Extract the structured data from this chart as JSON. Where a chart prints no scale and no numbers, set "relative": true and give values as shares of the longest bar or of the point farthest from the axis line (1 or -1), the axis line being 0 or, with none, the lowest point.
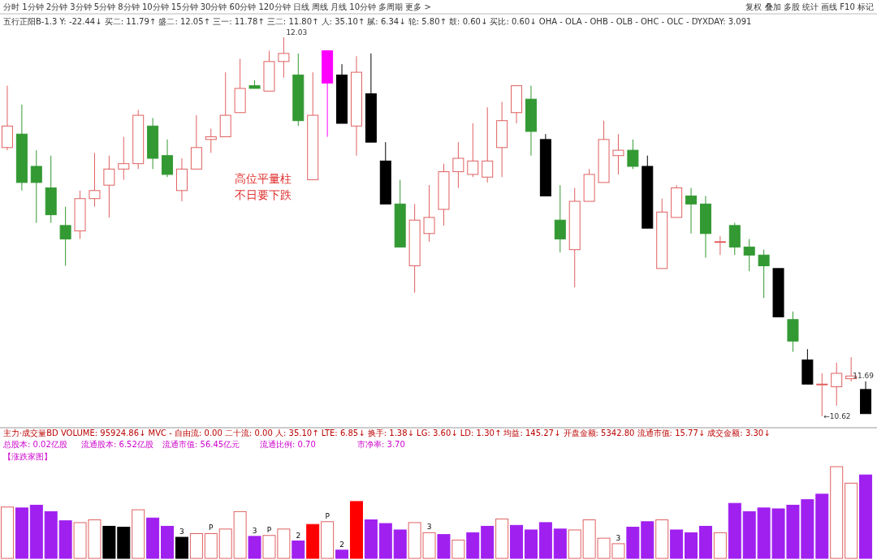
{
  "chart_data": [
    {
      "type": "candlestick",
      "title": "五行正阳B-1.3 Y: -22.44↓ 买二: 11.79↑ 盛二: 12.05↑ 三一: 11.78↑ 三二: 11.80↑ 人: 35.10↑ 腻: 6.34↓ 轮: 5.80↑ 鼓: 0.60↓ 买比: 0.60↓ OHA - OLA - OHB - OLB - OHC - OLC - DYXDAY: 3.091",
      "annotations": [
        "分时 1分钟 2分钟 3分钟 5分钟 8分钟 10分钟 15分钟 30分钟 60分钟 120分钟 日线 周线 月线 10分钟 多周期 更多 >",
        "复权 叠加 多股 统计 画线 F10 标记",
        "高位平量柱",
        "不日要下跌",
        "12.03",
        "11.69",
        "←10.62"
      ],
      "categories": [
        null,
        null,
        null,
        null,
        null,
        null,
        null,
        null,
        null,
        null,
        null,
        null,
        null,
        null,
        null,
        null,
        null,
        null,
        null,
        null,
        null,
        null,
        null,
        null,
        null,
        null,
        null,
        null,
        null,
        null,
        null,
        null,
        null,
        null,
        null,
        null,
        null,
        null,
        null,
        null,
        null,
        null,
        null,
        null,
        null,
        null,
        null,
        null,
        null,
        null,
        null,
        null,
        null,
        null,
        null,
        null,
        null,
        null,
        null,
        null
      ],
      "ohlc": [
        [
          11.62,
          11.85,
          11.61,
          11.7
        ],
        [
          11.67,
          11.78,
          11.46,
          11.49
        ],
        [
          11.55,
          11.61,
          11.34,
          11.49
        ],
        [
          11.47,
          11.59,
          11.34,
          11.37
        ],
        [
          11.33,
          11.4,
          11.18,
          11.28
        ],
        [
          11.31,
          11.46,
          11.28,
          11.43
        ],
        [
          11.43,
          11.6,
          11.4,
          11.46
        ],
        [
          11.48,
          11.59,
          11.36,
          11.54
        ],
        [
          11.54,
          11.66,
          11.5,
          11.56
        ],
        [
          11.56,
          11.76,
          11.54,
          11.74
        ],
        [
          11.7,
          11.73,
          11.54,
          11.58
        ],
        [
          11.59,
          11.65,
          11.51,
          11.52
        ],
        [
          11.46,
          11.58,
          11.42,
          11.54
        ],
        [
          11.54,
          11.74,
          11.54,
          11.62
        ],
        [
          11.65,
          11.69,
          11.6,
          11.66
        ],
        [
          11.66,
          11.9,
          11.66,
          11.74
        ],
        [
          11.75,
          11.95,
          11.75,
          11.84
        ],
        [
          11.85,
          11.87,
          11.84,
          11.84
        ],
        [
          11.83,
          11.98,
          11.83,
          11.94
        ],
        [
          11.94,
          12.03,
          11.88,
          11.97
        ],
        [
          11.89,
          11.97,
          11.7,
          11.72
        ],
        [
          11.5,
          11.9,
          11.5,
          11.74
        ],
        [
          11.86,
          11.98,
          11.66,
          11.98
        ],
        [
          11.89,
          11.93,
          11.71,
          11.71
        ],
        [
          11.7,
          11.96,
          11.59,
          11.9
        ],
        [
          11.82,
          11.97,
          11.64,
          11.64
        ],
        [
          11.57,
          11.64,
          11.41,
          11.41
        ],
        [
          11.41,
          11.5,
          11.25,
          11.25
        ],
        [
          11.18,
          11.41,
          11.08,
          11.35
        ],
        [
          11.3,
          11.48,
          11.27,
          11.36
        ],
        [
          11.39,
          11.56,
          11.33,
          11.53
        ],
        [
          11.53,
          11.64,
          11.47,
          11.58
        ],
        [
          11.52,
          11.71,
          11.51,
          11.57
        ],
        [
          11.51,
          11.77,
          11.49,
          11.57
        ],
        [
          11.62,
          11.79,
          11.51,
          11.72
        ],
        [
          11.75,
          11.85,
          11.71,
          11.85
        ],
        [
          11.8,
          11.85,
          11.59,
          11.68
        ],
        [
          11.65,
          11.67,
          11.44,
          11.44
        ],
        [
          11.35,
          11.48,
          11.23,
          11.28
        ],
        [
          11.24,
          11.47,
          11.1,
          11.42
        ],
        [
          11.42,
          11.54,
          11.42,
          11.52
        ],
        [
          11.49,
          11.72,
          11.49,
          11.65
        ],
        [
          11.59,
          11.67,
          11.52,
          11.61
        ],
        [
          11.61,
          11.65,
          11.54,
          11.55
        ],
        [
          11.55,
          11.59,
          11.32,
          11.32
        ],
        [
          11.17,
          11.43,
          11.17,
          11.38
        ],
        [
          11.36,
          11.48,
          11.36,
          11.47
        ],
        [
          11.44,
          11.47,
          11.3,
          11.41
        ],
        [
          11.41,
          11.44,
          11.21,
          11.3
        ],
        [
          11.27,
          11.29,
          11.22,
          11.27
        ],
        [
          11.33,
          11.34,
          11.22,
          11.25
        ],
        [
          11.25,
          11.28,
          11.16,
          11.22
        ],
        [
          11.22,
          11.24,
          11.06,
          11.18
        ],
        [
          11.17,
          11.17,
          10.99,
          10.99
        ],
        [
          10.98,
          11.01,
          10.86,
          10.9
        ],
        [
          10.83,
          10.87,
          10.74,
          10.74
        ],
        [
          10.74,
          10.78,
          10.62,
          10.74
        ],
        [
          10.73,
          10.82,
          10.66,
          10.78
        ],
        [
          10.76,
          10.84,
          10.75,
          10.77
        ],
        [
          10.72,
          10.75,
          10.63,
          10.63
        ]
      ],
      "colors": [
        "#e06060",
        "#339933",
        "#339933",
        "#339933",
        "#339933",
        "#e06060",
        "#e06060",
        "#e06060",
        "#e06060",
        "#e06060",
        "#339933",
        "#339933",
        "#e06060",
        "#e06060",
        "#e06060",
        "#e06060",
        "#e06060",
        "#339933",
        "#e06060",
        "#e06060",
        "#339933",
        "#e06060",
        "#ff00ff",
        "#000000",
        "#e06060",
        "#000000",
        "#000000",
        "#339933",
        "#e06060",
        "#e06060",
        "#e06060",
        "#e06060",
        "#e06060",
        "#e06060",
        "#e06060",
        "#e06060",
        "#339933",
        "#000000",
        "#339933",
        "#e06060",
        "#e06060",
        "#e06060",
        "#e06060",
        "#339933",
        "#000000",
        "#e06060",
        "#e06060",
        "#339933",
        "#339933",
        "#e06060",
        "#339933",
        "#339933",
        "#339933",
        "#000000",
        "#339933",
        "#000000",
        "#e06060",
        "#e06060",
        "#e06060",
        "#000000"
      ]
    },
    {
      "type": "bar",
      "relative": true,
      "title": "主力·成交量BD VOLUME: 95924.86↓ MVC - 自由流: 0.00 二十流: 0.00 人: 35.10↑ LTE: 6.85↓ 换手: 1.38↓ LG: 3.60↓ LD: 1.30↑ 均益: 145.27↓ 开盘金额: 5342.80 流通市值: 15.77↓ 成交金额: 3.30↓",
      "annotations": [
        "总股本: 0.02亿股",
        "流通股本: 6.52亿股",
        "流通市值: 56.45亿元",
        "流通比例: 0.70",
        "市净率: 3.70",
        "【涨跌家图】",
        "3",
        "P",
        "3",
        "P",
        "2",
        "P",
        "2",
        "3",
        "3"
      ],
      "categories": [
        null,
        null,
        null,
        null,
        null,
        null,
        null,
        null,
        null,
        null,
        null,
        null,
        null,
        null,
        null,
        null,
        null,
        null,
        null,
        null,
        null,
        null,
        null,
        null,
        null,
        null,
        null,
        null,
        null,
        null,
        null,
        null,
        null,
        null,
        null,
        null,
        null,
        null,
        null,
        null,
        null,
        null,
        null,
        null,
        null,
        null,
        null,
        null,
        null,
        null,
        null,
        null,
        null,
        null,
        null,
        null,
        null,
        null,
        null,
        null
      ],
      "values": [
        0.56,
        0.55,
        0.58,
        0.51,
        0.41,
        0.39,
        0.42,
        0.35,
        0.34,
        0.53,
        0.44,
        0.35,
        0.23,
        0.27,
        0.27,
        0.32,
        0.51,
        0.24,
        0.25,
        0.32,
        0.19,
        0.37,
        0.4,
        0.09,
        0.62,
        0.42,
        0.38,
        0.31,
        0.39,
        0.28,
        0.26,
        0.2,
        0.28,
        0.35,
        0.43,
        0.36,
        0.31,
        0.39,
        0.32,
        0.31,
        0.42,
        0.22,
        0.16,
        0.34,
        0.4,
        0.42,
        0.31,
        0.28,
        0.35,
        0.28,
        0.6,
        0.51,
        0.55,
        0.54,
        0.58,
        0.64,
        0.7,
        1,
        0.82,
        0.91
      ],
      "colors": [
        "#e06060",
        "#a020f0",
        "#a020f0",
        "#a020f0",
        "#a020f0",
        "#e06060",
        "#e06060",
        "#000000",
        "#000000",
        "#e06060",
        "#a020f0",
        "#a020f0",
        "#000000",
        "#e06060",
        "#e06060",
        "#e06060",
        "#e06060",
        "#a020f0",
        "#e06060",
        "#e06060",
        "#a020f0",
        "#ff0000",
        "#e06060",
        "#a020f0",
        "#ff0000",
        "#a020f0",
        "#a020f0",
        "#a020f0",
        "#e06060",
        "#e06060",
        "#a020f0",
        "#e06060",
        "#a020f0",
        "#a020f0",
        "#e06060",
        "#a020f0",
        "#a020f0",
        "#a020f0",
        "#a020f0",
        "#e06060",
        "#e06060",
        "#e06060",
        "#e06060",
        "#a020f0",
        "#a020f0",
        "#e06060",
        "#a020f0",
        "#a020f0",
        "#a020f0",
        "#e06060",
        "#a020f0",
        "#a020f0",
        "#a020f0",
        "#a020f0",
        "#a020f0",
        "#a020f0",
        "#a020f0",
        "#e06060",
        "#e06060",
        "#a020f0"
      ]
    }
  ]
}
